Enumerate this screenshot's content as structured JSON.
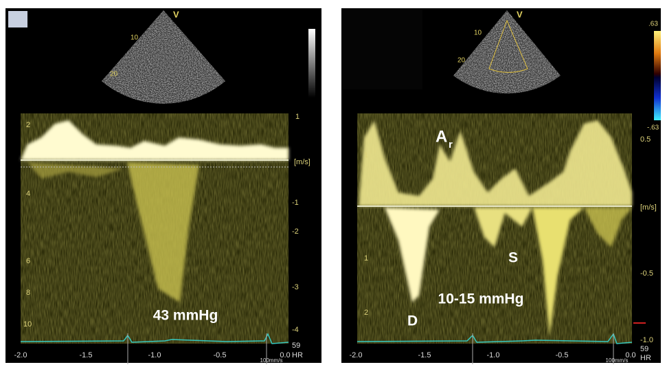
{
  "left_panel": {
    "sector_depths": [
      "10",
      "20"
    ],
    "probe_marker": "V",
    "left_ticks": [
      "2",
      "4",
      "6",
      "8",
      "10"
    ],
    "right_ticks": [
      "1",
      "[m/s]",
      "-1",
      "-2",
      "-3",
      "-4"
    ],
    "x_ticks": [
      "-2.0",
      "-1.5",
      "-1.0",
      "-0.5",
      "0.0"
    ],
    "sweep": "100mm/s",
    "heart_rate": "59",
    "hr_label": "HR",
    "annotation": "43 mmHg"
  },
  "right_panel": {
    "sector_depths": [
      "10",
      "20"
    ],
    "probe_marker": "V",
    "color_scale": [
      ".63",
      "-.63"
    ],
    "left_ticks": [
      "1",
      "1",
      "2"
    ],
    "baseline_unit": "m/s",
    "right_ticks": [
      "0.5",
      "[m/s]",
      "-0.5",
      "-1.0"
    ],
    "x_ticks": [
      "-2.0",
      "-1.5",
      "-1.0",
      "-0.5",
      "0.0"
    ],
    "sweep": "100mm/s",
    "heart_rate": "59",
    "hr_label": "HR",
    "wave_a": "A",
    "wave_a_sub": "r",
    "wave_s": "S",
    "wave_d": "D",
    "annotation": "10-15 mmHg"
  }
}
